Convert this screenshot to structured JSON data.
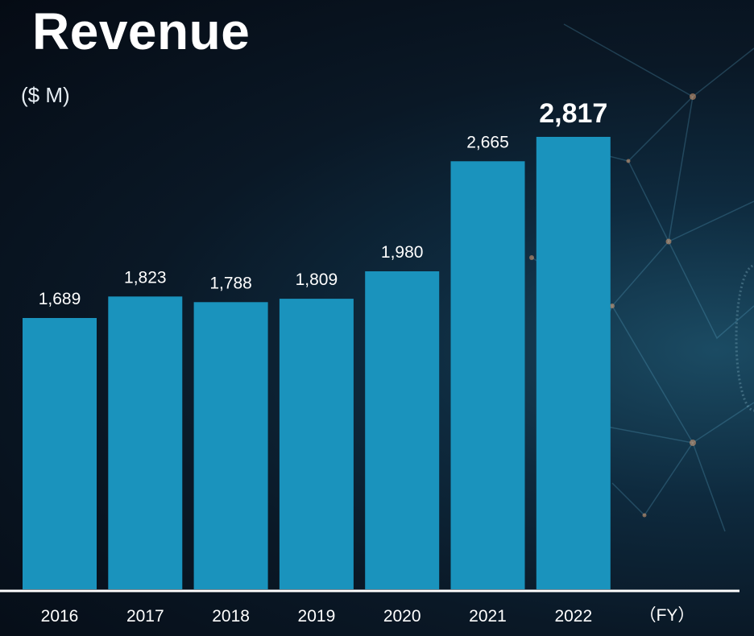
{
  "title": "Revenue",
  "unit_label": "($ M)",
  "x_unit_label": "（FY）",
  "colors": {
    "bar": "#1a93bd",
    "axis": "#ffffff",
    "text": "#ffffff"
  },
  "chart_data": {
    "type": "bar",
    "categories": [
      "2016",
      "2017",
      "2018",
      "2019",
      "2020",
      "2021",
      "2022"
    ],
    "values": [
      1689,
      1823,
      1788,
      1809,
      1980,
      2665,
      2817
    ],
    "value_labels": [
      "1,689",
      "1,823",
      "1,788",
      "1,809",
      "1,980",
      "2,665",
      "2,817"
    ],
    "highlight_category": "2022",
    "title": "Revenue",
    "ylabel": "($ M)",
    "xlabel": "（FY）",
    "ylim": [
      0,
      2817
    ],
    "grid": false,
    "legend": "none"
  }
}
